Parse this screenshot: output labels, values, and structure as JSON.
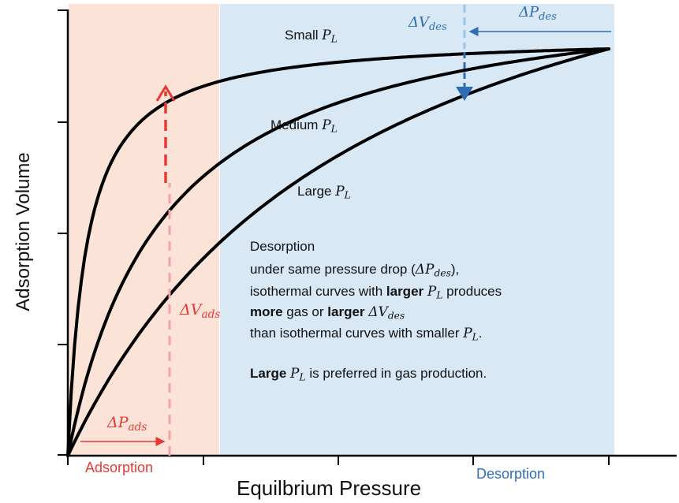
{
  "axes": {
    "x_label": "Equilbrium Pressure",
    "y_label": "Adsorption Volume"
  },
  "regions": {
    "adsorption_label": "Adsorption",
    "desorption_label": "Desorption",
    "adsorption_color": "#fbe3d7",
    "desorption_color": "#d9e8f5"
  },
  "curves": [
    {
      "name": "Small",
      "symbol": "P",
      "subscript": "L"
    },
    {
      "name": "Medium",
      "symbol": "P",
      "subscript": "L"
    },
    {
      "name": "Large",
      "symbol": "P",
      "subscript": "L"
    }
  ],
  "annotations": {
    "delta_p_ads": {
      "delta": "Δ",
      "symbol": "P",
      "subscript": "ads"
    },
    "delta_v_ads": {
      "delta": "Δ",
      "symbol": "V",
      "subscript": "ads"
    },
    "delta_v_des": {
      "delta": "Δ",
      "symbol": "V",
      "subscript": "des"
    },
    "delta_p_des": {
      "delta": "Δ",
      "symbol": "P",
      "subscript": "des"
    }
  },
  "description": {
    "heading": "Desorption",
    "line1_prefix": "under same pressure drop (",
    "line1_symbol": "ΔP",
    "line1_sub": "des",
    "line1_suffix": "),",
    "line2_a": "isothermal curves with ",
    "line2_bold": "larger",
    "line2_sym": "P",
    "line2_sub": "L",
    "line2_b": " produces",
    "line3_bold1": "more",
    "line3_a": " gas or ",
    "line3_bold2": "larger",
    "line3_sym": "ΔV",
    "line3_sub": "des",
    "line4_a": "than isothermal curves with smaller ",
    "line4_sym": "P",
    "line4_sub": "L",
    "line4_b": ".",
    "line5_bold": "Large",
    "line5_sym": "P",
    "line5_sub": "L",
    "line5_a": " is preferred in gas production."
  },
  "colors": {
    "curve": "#000000",
    "adsorption_accent": "#e53935",
    "desorption_accent": "#2e6db4"
  }
}
